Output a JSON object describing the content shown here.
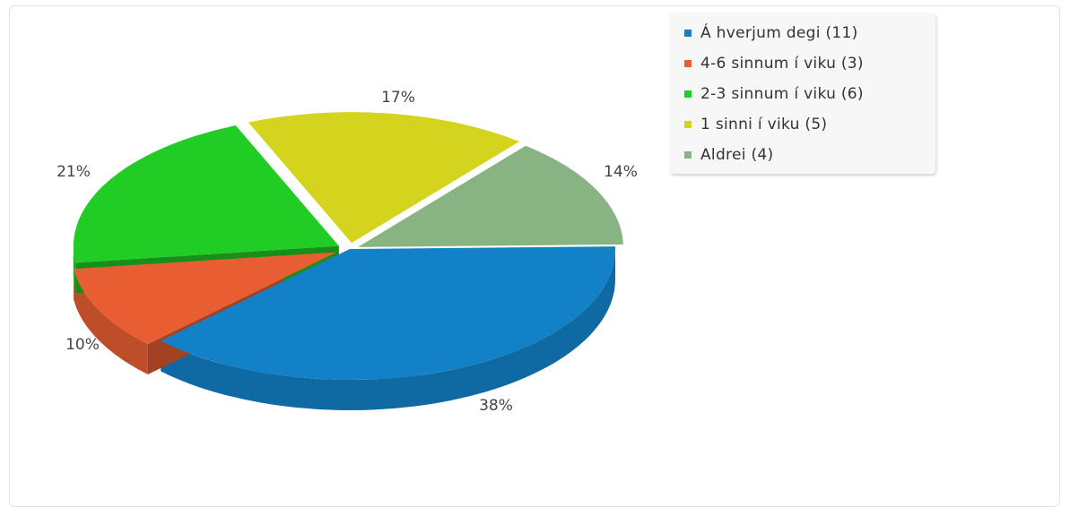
{
  "chart_data": {
    "type": "pie",
    "categories": [
      "Á hverjum degi (11)",
      "4-6 sinnum í viku (3)",
      "2-3 sinnum í viku (6)",
      "1 sinni í viku (5)",
      "Aldrei (4)"
    ],
    "values": [
      11,
      3,
      6,
      5,
      4
    ],
    "percent_labels": [
      "38%",
      "10%",
      "21%",
      "17%",
      "14%"
    ],
    "colors": [
      "#1281c8",
      "#e85e32",
      "#21cc25",
      "#d4d41f",
      "#88b484"
    ],
    "legend": "top-right"
  }
}
